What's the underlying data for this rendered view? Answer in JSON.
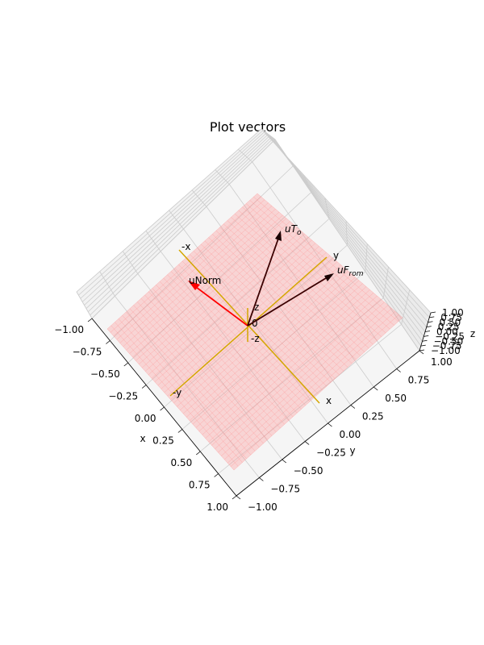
{
  "chart_data": {
    "type": "3d-vector-plot",
    "title": "Plot vectors",
    "xlabel": "x",
    "ylabel": "y",
    "zlabel": "z",
    "xlim": [
      -1.0,
      1.0
    ],
    "ylim": [
      -1.0,
      1.0
    ],
    "zlim": [
      -1.0,
      1.0
    ],
    "x_ticks": [
      "−1.00",
      "−0.75",
      "−0.50",
      "−0.25",
      "0.00",
      "0.25",
      "0.50",
      "0.75",
      "1.00"
    ],
    "y_ticks": [
      "−1.00",
      "−0.75",
      "−0.50",
      "−0.25",
      "0.00",
      "0.25",
      "0.50",
      "0.75",
      "1.00"
    ],
    "z_ticks": [
      "1.00",
      "0.75",
      "0.50",
      "0.25",
      "0.00",
      "−0.25",
      "−0.50",
      "−0.75",
      "−1.00"
    ],
    "grid": true,
    "plane": {
      "color": "#ff9999",
      "note": "semi-transparent plane through origin"
    },
    "axis_lines": {
      "color": "#d4a600",
      "labels": {
        "x": "x",
        "neg_x": "-x",
        "y": "y",
        "neg_y": "-y",
        "z": "z",
        "neg_z": "-z",
        "origin": "0"
      }
    },
    "vectors": [
      {
        "label": "uNorm",
        "color": "#ff0000"
      },
      {
        "label_base": "uT",
        "label_sub": "o",
        "color": "#3a0000"
      },
      {
        "label_base": "uF",
        "label_sub": "rom",
        "color": "#3a0000"
      }
    ]
  }
}
